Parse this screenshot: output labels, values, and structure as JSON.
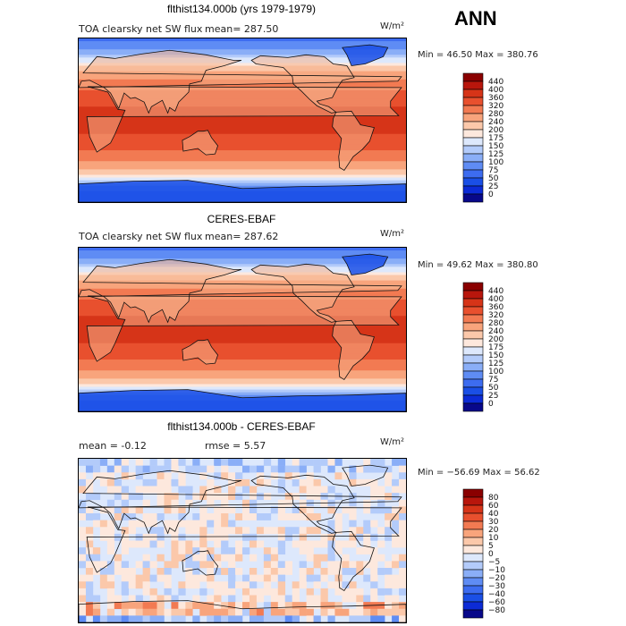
{
  "season": "ANN",
  "units": "W/m²",
  "panels": [
    {
      "title": "flthist134.000b (yrs 1979-1979)",
      "variable": "TOA clearsky net SW flux",
      "stat_text": "mean=  287.50",
      "minmax_text": "Min =  46.50  Max =  380.76"
    },
    {
      "title": "CERES-EBAF",
      "variable": "TOA clearsky net SW flux",
      "stat_text": "mean=  287.62",
      "minmax_text": "Min =  49.62  Max =  380.80"
    },
    {
      "title": "flthist134.000b - CERES-EBAF",
      "variable": "",
      "stat_text": "mean =   -0.12",
      "stat_text2": "rmse =   5.57",
      "minmax_text": "Min = −56.69  Max =  56.62"
    }
  ],
  "chart_data": [
    {
      "type": "heatmap",
      "title": "flthist134.000b (yrs 1979-1979)",
      "variable": "TOA clearsky net SW flux",
      "units": "W/m²",
      "mean": 287.5,
      "min": 46.5,
      "max": 380.76,
      "colorbar_levels": [
        0,
        25,
        50,
        75,
        100,
        125,
        150,
        175,
        200,
        240,
        280,
        320,
        360,
        400,
        440
      ],
      "colorbar_colors": [
        "#08088a",
        "#0c2bd6",
        "#1a4fe6",
        "#3d6cf0",
        "#5f8cf4",
        "#8aaef7",
        "#b3cbfa",
        "#dde8fc",
        "#fde8dd",
        "#fbc8aa",
        "#f8a47c",
        "#f27a52",
        "#e8502e",
        "#d63418",
        "#b8160c",
        "#8a0000"
      ],
      "zonal_profile_lat": [
        90,
        75,
        60,
        45,
        30,
        15,
        0,
        -15,
        -30,
        -45,
        -60,
        -75,
        -90
      ],
      "zonal_profile_value": [
        60,
        110,
        200,
        280,
        330,
        360,
        370,
        360,
        330,
        280,
        200,
        80,
        50
      ]
    },
    {
      "type": "heatmap",
      "title": "CERES-EBAF",
      "variable": "TOA clearsky net SW flux",
      "units": "W/m²",
      "mean": 287.62,
      "min": 49.62,
      "max": 380.8,
      "colorbar_levels": [
        0,
        25,
        50,
        75,
        100,
        125,
        150,
        175,
        200,
        240,
        280,
        320,
        360,
        400,
        440
      ],
      "colorbar_colors": [
        "#08088a",
        "#0c2bd6",
        "#1a4fe6",
        "#3d6cf0",
        "#5f8cf4",
        "#8aaef7",
        "#b3cbfa",
        "#dde8fc",
        "#fde8dd",
        "#fbc8aa",
        "#f8a47c",
        "#f27a52",
        "#e8502e",
        "#d63418",
        "#b8160c",
        "#8a0000"
      ],
      "zonal_profile_lat": [
        90,
        75,
        60,
        45,
        30,
        15,
        0,
        -15,
        -30,
        -45,
        -60,
        -75,
        -90
      ],
      "zonal_profile_value": [
        60,
        110,
        200,
        280,
        330,
        360,
        370,
        360,
        330,
        280,
        200,
        80,
        50
      ]
    },
    {
      "type": "heatmap",
      "title": "flthist134.000b - CERES-EBAF",
      "units": "W/m²",
      "mean": -0.12,
      "rmse": 5.57,
      "min": -56.69,
      "max": 56.62,
      "colorbar_levels": [
        -80,
        -60,
        -40,
        -30,
        -20,
        -10,
        -5,
        0,
        5,
        10,
        20,
        30,
        40,
        60,
        80
      ],
      "colorbar_colors": [
        "#08088a",
        "#0c2bd6",
        "#1a4fe6",
        "#3d6cf0",
        "#5f8cf4",
        "#8aaef7",
        "#b3cbfa",
        "#dde8fc",
        "#fde8dd",
        "#fbc8aa",
        "#f8a47c",
        "#f27a52",
        "#e8502e",
        "#d63418",
        "#b8160c",
        "#8a0000"
      ]
    }
  ]
}
